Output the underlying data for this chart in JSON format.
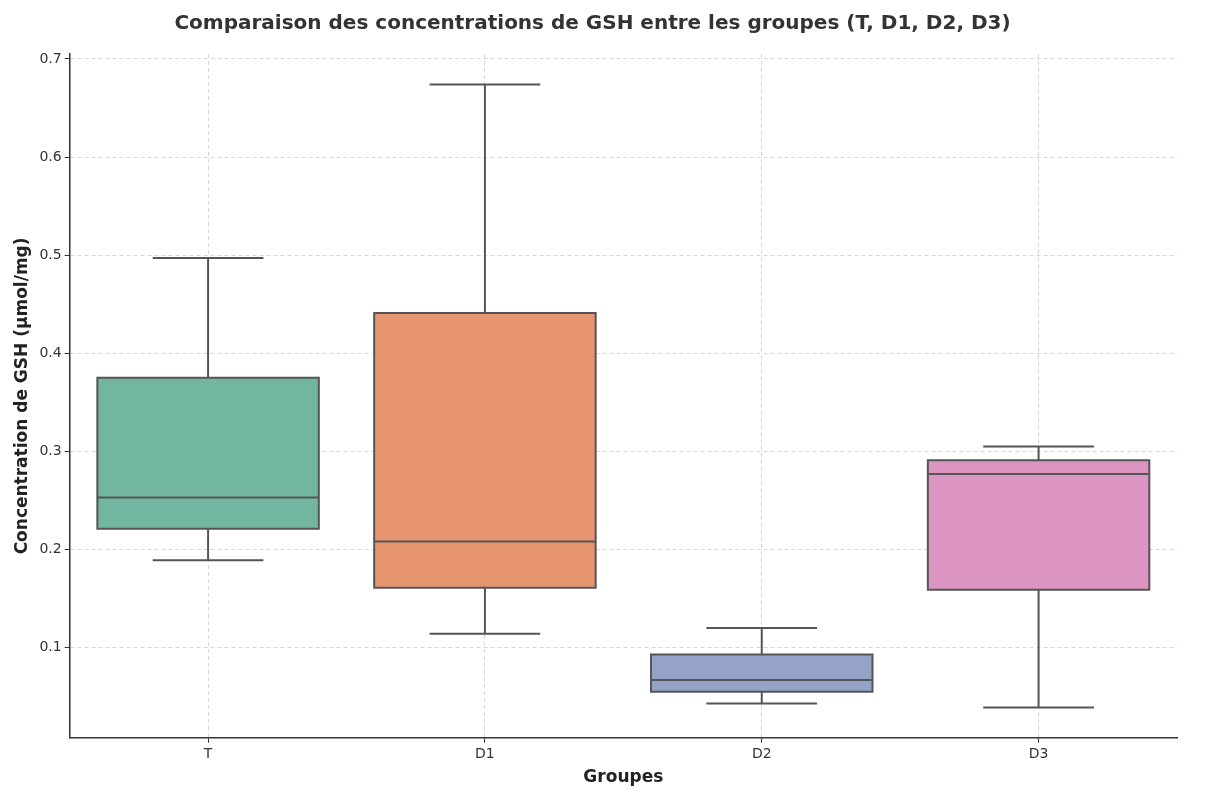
{
  "chart_data": {
    "type": "box",
    "title": "Comparaison des concentrations de GSH entre les groupes (T, D1, D2, D3)",
    "xlabel": "Groupes",
    "ylabel": "Concentration de GSH (µmol/mg)",
    "categories": [
      "T",
      "D1",
      "D2",
      "D3"
    ],
    "colors": [
      "#72b6a1",
      "#e6956f",
      "#94a3c7",
      "#dc94c0"
    ],
    "boxes": [
      {
        "low": 0.189,
        "q1": 0.221,
        "median": 0.253,
        "q3": 0.375,
        "high": 0.497
      },
      {
        "low": 0.114,
        "q1": 0.161,
        "median": 0.208,
        "q3": 0.441,
        "high": 0.674
      },
      {
        "low": 0.043,
        "q1": 0.055,
        "median": 0.067,
        "q3": 0.093,
        "high": 0.12
      },
      {
        "low": 0.039,
        "q1": 0.159,
        "median": 0.277,
        "q3": 0.291,
        "high": 0.305
      }
    ],
    "ylim": [
      0.008,
      0.705
    ],
    "yticks": [
      0.1,
      0.2,
      0.3,
      0.4,
      0.5,
      0.6,
      0.7
    ],
    "grid": true,
    "legend": false
  }
}
